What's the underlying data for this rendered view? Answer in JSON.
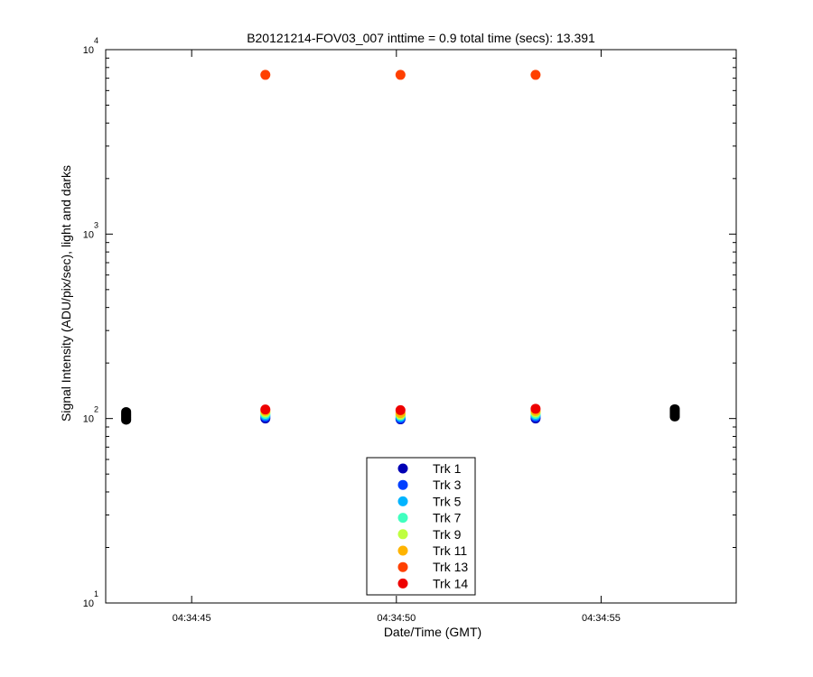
{
  "chart_data": {
    "type": "scatter",
    "title": "B20121214-FOV03_007 inttime = 0.9 total time (secs): 13.391",
    "xlabel": "Date/Time (GMT)",
    "ylabel": "Signal Intensity (ADU/pix/sec), light and darks",
    "yscale": "log",
    "ylim": [
      10,
      10000
    ],
    "xlim": [
      "04:34:42.9",
      "04:34:58.3"
    ],
    "x_ticks": [
      "04:34:45",
      "04:34:50",
      "04:34:55"
    ],
    "y_ticks": [
      {
        "base": "10",
        "exp": "1"
      },
      {
        "base": "10",
        "exp": "2"
      },
      {
        "base": "10",
        "exp": "3"
      },
      {
        "base": "10",
        "exp": "4"
      }
    ],
    "legend_position": "bottom-center",
    "series": [
      {
        "name": "Trk 1",
        "color": "#0000b4",
        "x": [
          "04:34:46.8",
          "04:34:50.1",
          "04:34:53.4"
        ],
        "y": [
          100,
          99,
          100
        ]
      },
      {
        "name": "Trk 3",
        "color": "#0040ff",
        "x": [
          "04:34:46.8",
          "04:34:50.1",
          "04:34:53.4"
        ],
        "y": [
          102,
          100,
          102
        ]
      },
      {
        "name": "Trk 5",
        "color": "#00b4ff",
        "x": [
          "04:34:46.8",
          "04:34:50.1",
          "04:34:53.4"
        ],
        "y": [
          104,
          102,
          104
        ]
      },
      {
        "name": "Trk 7",
        "color": "#40ffbf",
        "x": [
          "04:34:46.8",
          "04:34:50.1",
          "04:34:53.4"
        ],
        "y": [
          106,
          104,
          106
        ]
      },
      {
        "name": "Trk 9",
        "color": "#bfff40",
        "x": [
          "04:34:46.8",
          "04:34:50.1",
          "04:34:53.4"
        ],
        "y": [
          108,
          105,
          108
        ]
      },
      {
        "name": "Trk 11",
        "color": "#ffb400",
        "x": [
          "04:34:46.8",
          "04:34:50.1",
          "04:34:53.4"
        ],
        "y": [
          110,
          107,
          110
        ]
      },
      {
        "name": "Trk 13",
        "color": "#ff4000",
        "x": [
          "04:34:46.8",
          "04:34:50.1",
          "04:34:53.4"
        ],
        "y": [
          7300,
          7300,
          7300
        ]
      },
      {
        "name": "Trk 14",
        "color": "#ee0000",
        "x": [
          "04:34:46.8",
          "04:34:50.1",
          "04:34:53.4"
        ],
        "y": [
          112,
          111,
          113
        ]
      }
    ],
    "darks": {
      "color": "#000000",
      "x": [
        "04:34:43.4",
        "04:34:43.4",
        "04:34:43.4",
        "04:34:43.4",
        "04:34:43.4",
        "04:34:43.4",
        "04:34:43.4",
        "04:34:43.4",
        "04:34:56.8",
        "04:34:56.8",
        "04:34:56.8",
        "04:34:56.8",
        "04:34:56.8",
        "04:34:56.8",
        "04:34:56.8",
        "04:34:56.8"
      ],
      "y": [
        98,
        99.5,
        101,
        102.5,
        104,
        105.5,
        107,
        109,
        102,
        103.5,
        105,
        106.5,
        108,
        109.5,
        111,
        113
      ]
    }
  }
}
